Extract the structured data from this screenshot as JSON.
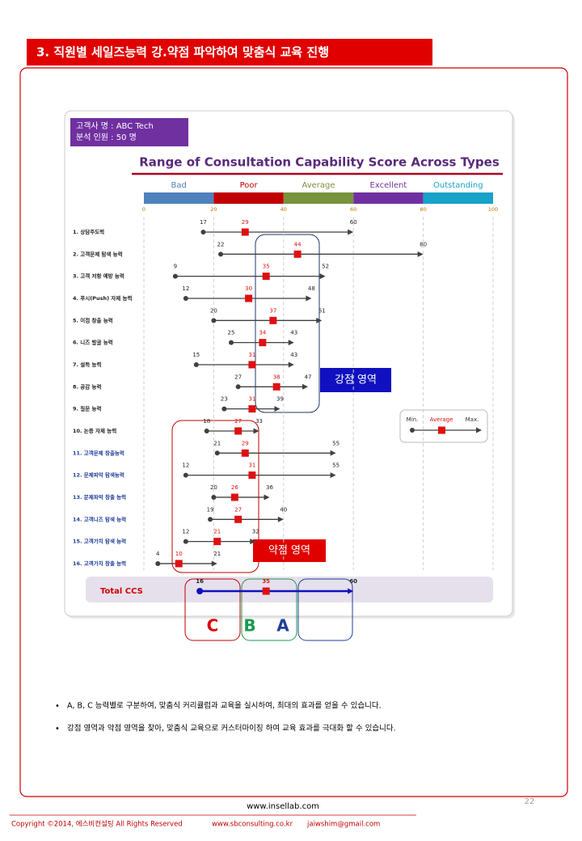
{
  "header": {
    "title": "3. 직원별 세일즈능력 강.약점 파악하여 맞춤식 교육 진행"
  },
  "info": {
    "customer": "고객사 명 :   ABC Tech",
    "staff": "분석 인원 :   50 명"
  },
  "chart_data": {
    "type": "range",
    "title": "Range of Consultation Capability Score Across Types",
    "categories": [
      "1. 상담주도력",
      "2. 고객문제 탐색 능력",
      "3. 고객 저항 예방 능력",
      "4. 푸시(Push) 자제 능력",
      "5. 이점 창출 능력",
      "6. 니즈 발굴 능력",
      "7. 설득 능력",
      "8. 공감 능력",
      "9. 질문 능력",
      "10. 논증 자제 능력",
      "11. 고객문제 창출능력",
      "12. 문제파악 탐색능력",
      "13. 문제파악 창출 능력",
      "14. 고객니즈 탐색 능력",
      "15. 고객가치 탐색 능력",
      "16. 고객가치 창출 능력"
    ],
    "category_colors": [
      "#222222",
      "#222222",
      "#222222",
      "#222222",
      "#222222",
      "#222222",
      "#222222",
      "#222222",
      "#222222",
      "#222222",
      "#1f3d99",
      "#1f3d99",
      "#1f3d99",
      "#1f3d99",
      "#1f3d99",
      "#1f3d99"
    ],
    "series": [
      {
        "name": "Min.",
        "color": "#404040",
        "values": [
          17,
          22,
          9,
          12,
          20,
          25,
          15,
          27,
          23,
          18,
          21,
          12,
          20,
          19,
          12,
          4
        ]
      },
      {
        "name": "Average",
        "color": "#e01010",
        "values": [
          29,
          44,
          35,
          30,
          37,
          34,
          31,
          38,
          31,
          27,
          29,
          31,
          26,
          27,
          21,
          10
        ]
      },
      {
        "name": "Max.",
        "color": "#404040",
        "values": [
          60,
          80,
          52,
          48,
          51,
          43,
          43,
          47,
          39,
          33,
          55,
          55,
          36,
          40,
          32,
          21
        ]
      }
    ],
    "total": {
      "name": "Total CCS",
      "color": "#1010c0",
      "values": [
        16,
        35,
        60
      ]
    },
    "bands": [
      {
        "name": "Bad",
        "color": "#4f81bd",
        "from": 0,
        "to": 20
      },
      {
        "name": "Poor",
        "color": "#c00000",
        "from": 20,
        "to": 40
      },
      {
        "name": "Average",
        "color": "#77933c",
        "from": 40,
        "to": 60
      },
      {
        "name": "Excellent",
        "color": "#7030a0",
        "from": 60,
        "to": 80
      },
      {
        "name": "Outstanding",
        "color": "#17a2c8",
        "from": 80,
        "to": 100
      }
    ],
    "xlim": [
      0,
      100
    ],
    "xticks": [
      0,
      20,
      40,
      60,
      80,
      100
    ],
    "grid": true,
    "annotations": {
      "strength": "강점 영역",
      "weakness": "약점 영역"
    },
    "groups": [
      "C",
      "B",
      "A"
    ]
  },
  "bullets": [
    "A, B, C 능력별로 구분하여, 맞춤식 커리큘럼과 교육을 실시하여, 최대의 효과를 얻을 수 있습니다.",
    "강점 영역과 약점 영역을 찾아, 맞춤식 교육으로 커스터마이징 하여 교육 효과를 극대화 할 수 있습니다."
  ],
  "footer": {
    "site": "www.insellab.com",
    "page": "22",
    "copyright": "Copyright ©2014, 에스비컨설팅 All Rights Reserved",
    "web": "www.sbconsulting.co.kr",
    "email": "jaiwshim@gmail.com"
  }
}
